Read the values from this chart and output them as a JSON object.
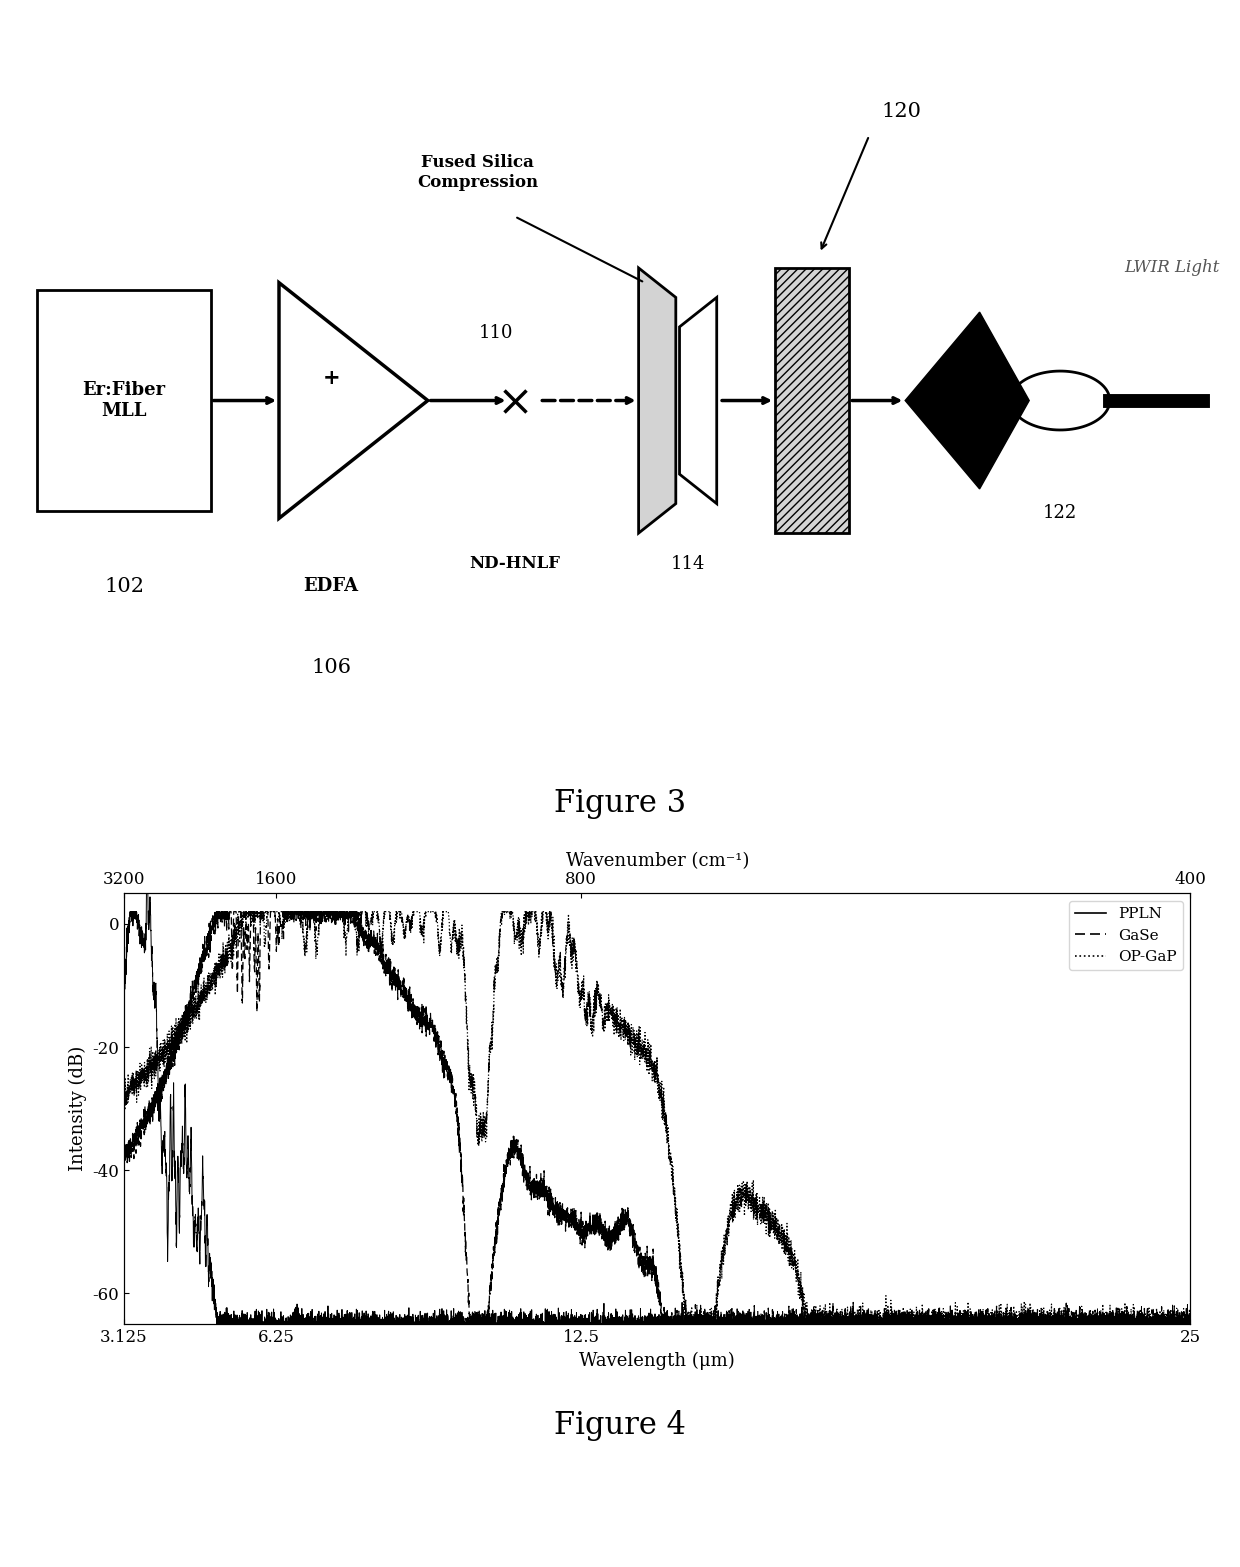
{
  "fig3_caption": "Figure 3",
  "fig4_caption": "Figure 4",
  "plot": {
    "xlabel": "Wavelength (μm)",
    "ylabel": "Intensity (dB)",
    "top_xlabel": "Wavenumber (cm⁻¹)",
    "xlim_wavelength": [
      3.125,
      25
    ],
    "ylim": [
      -65,
      5
    ],
    "yticks": [
      0,
      -20,
      -40,
      -60
    ],
    "xticks_bottom": [
      3.125,
      6.25,
      12.5,
      25
    ],
    "xtick_labels": [
      "3.125",
      "6.25",
      "12.5",
      "25"
    ],
    "xticks_top_labels": [
      "3200",
      "1600",
      "800",
      "400"
    ],
    "legend_labels": [
      "PPLN",
      "GaSe",
      "OP-GaP"
    ]
  },
  "background_color": "#ffffff"
}
